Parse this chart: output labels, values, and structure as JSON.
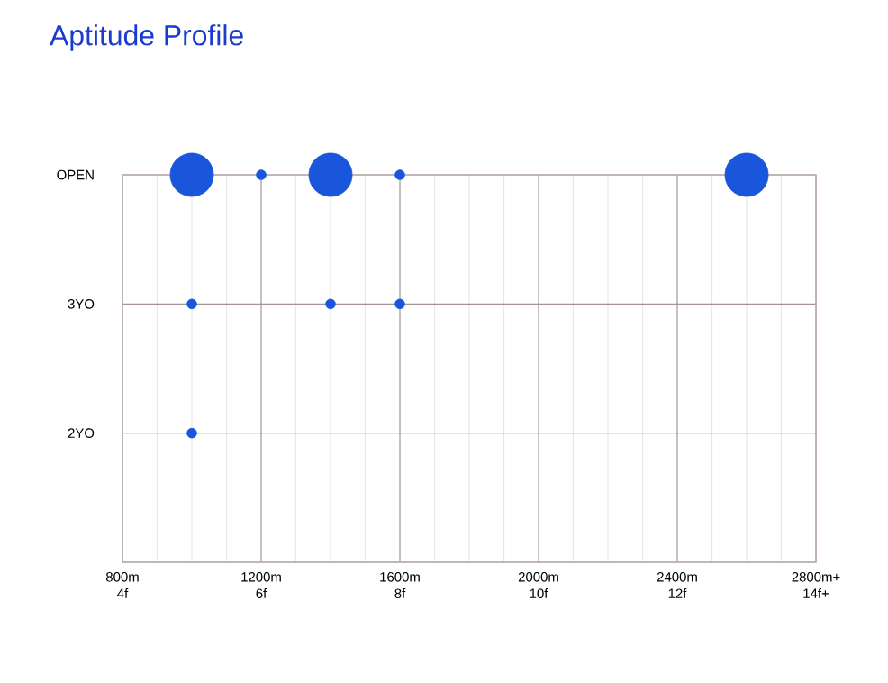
{
  "chart_data": {
    "type": "bubble",
    "title": "Aptitude Profile",
    "orientation": "horizontal",
    "categories": [
      "OPEN",
      "3YO",
      "2YO",
      null
    ],
    "series": [
      {
        "color": "#1a56db",
        "values": [
          1000,
          1000,
          1000,
          null
        ],
        "sizes": [
          1,
          0.05,
          0.05,
          null
        ]
      },
      {
        "color": "#1a56db",
        "values": [
          1200,
          null,
          null,
          null
        ],
        "sizes": [
          0.05,
          null,
          null,
          null
        ]
      },
      {
        "color": "#1a56db",
        "values": [
          1400,
          1400,
          null,
          null
        ],
        "sizes": [
          1,
          0.05,
          null,
          null
        ]
      },
      {
        "color": "#1a56db",
        "values": [
          1600,
          1600,
          null,
          null
        ],
        "sizes": [
          0.05,
          0.05,
          null,
          null
        ]
      },
      {
        "color": "#1a56db",
        "values": [
          2600,
          null,
          null,
          null
        ],
        "sizes": [
          1,
          null,
          null,
          null
        ]
      }
    ],
    "xlim": [
      800,
      2800
    ],
    "xticks": [
      {
        "value": 800,
        "label": "800m"
      },
      {
        "value": 1200,
        "label": "1200m"
      },
      {
        "value": 1600,
        "label": "1600m"
      },
      {
        "value": 2000,
        "label": "2000m"
      },
      {
        "value": 2400,
        "label": "2400m"
      },
      {
        "value": 2800,
        "label": "2800m+"
      }
    ],
    "x2lim": [
      4,
      14
    ],
    "x2ticks": [
      {
        "value": 4,
        "label": "4f"
      },
      {
        "value": 6,
        "label": "6f"
      },
      {
        "value": 8,
        "label": "8f"
      },
      {
        "value": 10,
        "label": "10f"
      },
      {
        "value": 12,
        "label": "12f"
      },
      {
        "value": 14,
        "label": "14f+"
      }
    ],
    "grid": true
  }
}
